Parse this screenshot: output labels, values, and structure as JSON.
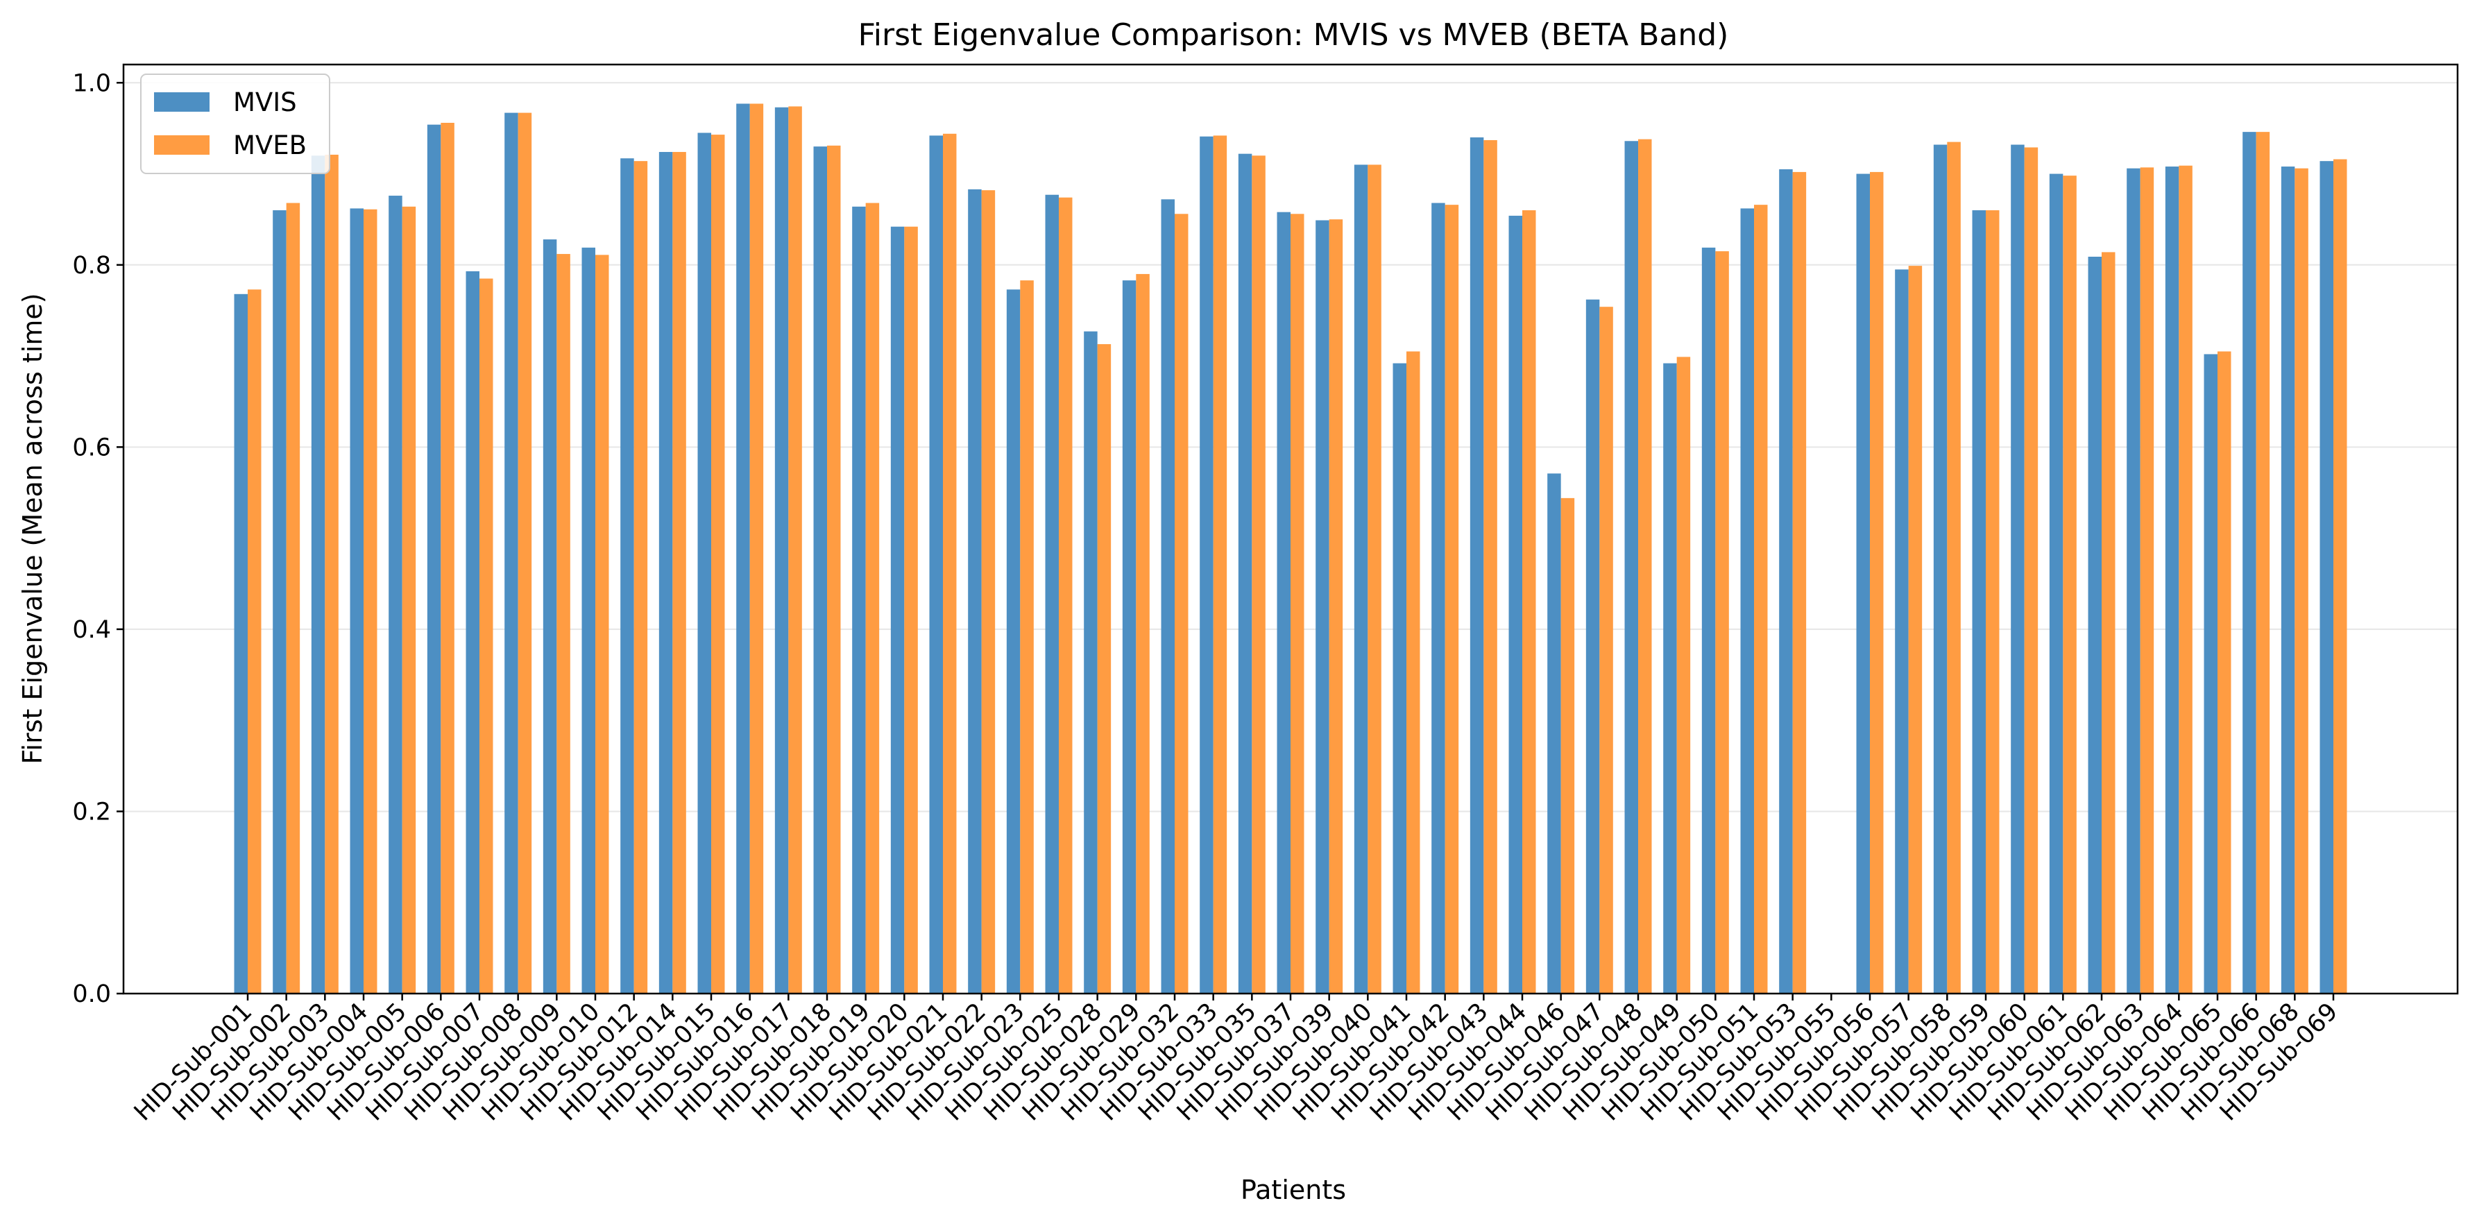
{
  "colors": {
    "mvis": "#4d8fc3",
    "mveb": "#ff9c42",
    "grid": "#e6e6e6",
    "axis": "#000000"
  },
  "chart_data": {
    "type": "bar",
    "title": "First Eigenvalue Comparison: MVIS vs MVEB (BETA Band)",
    "xlabel": "Patients",
    "ylabel": "First Eigenvalue (Mean across time)",
    "ylim": [
      0,
      1.02
    ],
    "yticks": [
      "0.0",
      "0.2",
      "0.4",
      "0.6",
      "0.8",
      "1.0"
    ],
    "grid": "y",
    "legend_position": "top-left",
    "categories": [
      "HID-Sub-001",
      "HID-Sub-002",
      "HID-Sub-003",
      "HID-Sub-004",
      "HID-Sub-005",
      "HID-Sub-006",
      "HID-Sub-007",
      "HID-Sub-008",
      "HID-Sub-009",
      "HID-Sub-010",
      "HID-Sub-012",
      "HID-Sub-014",
      "HID-Sub-015",
      "HID-Sub-016",
      "HID-Sub-017",
      "HID-Sub-018",
      "HID-Sub-019",
      "HID-Sub-020",
      "HID-Sub-021",
      "HID-Sub-022",
      "HID-Sub-023",
      "HID-Sub-025",
      "HID-Sub-028",
      "HID-Sub-029",
      "HID-Sub-032",
      "HID-Sub-033",
      "HID-Sub-035",
      "HID-Sub-037",
      "HID-Sub-039",
      "HID-Sub-040",
      "HID-Sub-041",
      "HID-Sub-042",
      "HID-Sub-043",
      "HID-Sub-044",
      "HID-Sub-046",
      "HID-Sub-047",
      "HID-Sub-048",
      "HID-Sub-049",
      "HID-Sub-050",
      "HID-Sub-051",
      "HID-Sub-053",
      "HID-Sub-055",
      "HID-Sub-056",
      "HID-Sub-057",
      "HID-Sub-058",
      "HID-Sub-059",
      "HID-Sub-060",
      "HID-Sub-061",
      "HID-Sub-062",
      "HID-Sub-063",
      "HID-Sub-064",
      "HID-Sub-065",
      "HID-Sub-066",
      "HID-Sub-068",
      "HID-Sub-069"
    ],
    "series": [
      {
        "name": "MVIS",
        "values": [
          0.768,
          0.86,
          0.92,
          0.862,
          0.876,
          0.954,
          0.793,
          0.967,
          0.828,
          0.819,
          0.917,
          0.924,
          0.945,
          0.977,
          0.973,
          0.93,
          0.864,
          0.842,
          0.942,
          0.883,
          0.773,
          0.877,
          0.727,
          0.783,
          0.872,
          0.941,
          0.922,
          0.858,
          0.849,
          0.91,
          0.692,
          0.868,
          0.94,
          0.854,
          0.571,
          0.762,
          0.936,
          0.692,
          0.819,
          0.862,
          0.905,
          null,
          0.9,
          0.795,
          0.932,
          0.86,
          0.932,
          0.9,
          0.809,
          0.906,
          0.908,
          0.702,
          0.946,
          0.908,
          0.914
        ]
      },
      {
        "name": "MVEB",
        "values": [
          0.773,
          0.868,
          0.921,
          0.861,
          0.864,
          0.956,
          0.785,
          0.967,
          0.812,
          0.811,
          0.914,
          0.924,
          0.943,
          0.977,
          0.974,
          0.931,
          0.868,
          0.842,
          0.944,
          0.882,
          0.783,
          0.874,
          0.713,
          0.79,
          0.856,
          0.942,
          0.92,
          0.856,
          0.85,
          0.91,
          0.705,
          0.866,
          0.937,
          0.86,
          0.544,
          0.754,
          0.938,
          0.699,
          0.815,
          0.866,
          0.902,
          null,
          0.902,
          0.799,
          0.935,
          0.86,
          0.929,
          0.898,
          0.814,
          0.907,
          0.909,
          0.705,
          0.946,
          0.906,
          0.916
        ]
      }
    ]
  }
}
